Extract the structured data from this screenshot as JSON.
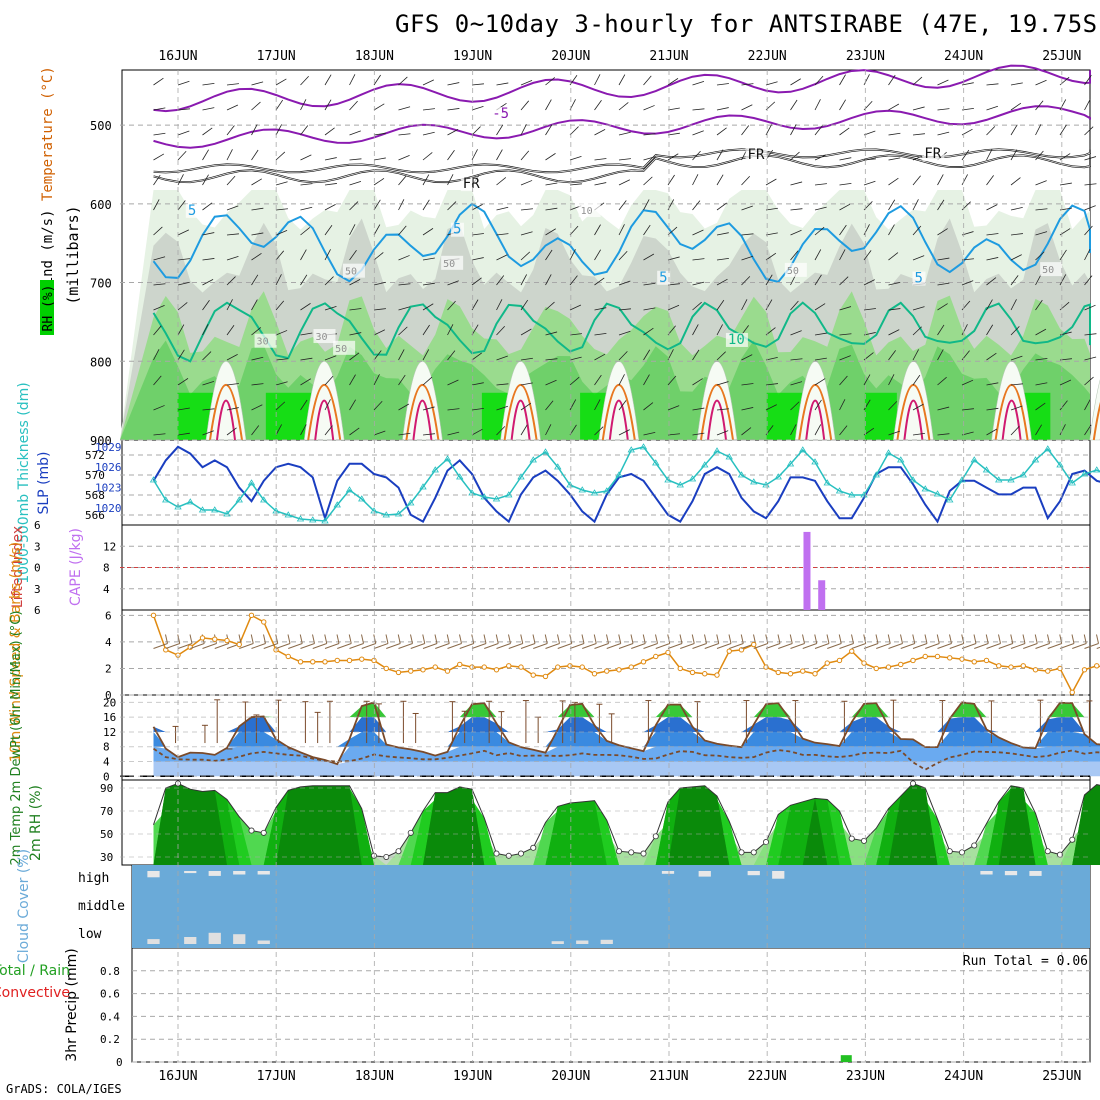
{
  "title": "GFS 0~10day 3-hourly for ANTSIRABE (47E, 19.75S)",
  "footer": "GrADS: COLA/IGES",
  "dates": [
    "16JUN",
    "17JUN",
    "18JUN",
    "19JUN",
    "20JUN",
    "21JUN",
    "22JUN",
    "23JUN",
    "24JUN",
    "25JUN"
  ],
  "colors": {
    "grid": "#a8a8a8",
    "ref_line": "#d04040",
    "cape": "#c070f0",
    "wind_speed": "#e08a10",
    "barb": "#8a6a4a",
    "slp": "#1a3ec0",
    "thickness": "#28c0c0",
    "temp_line": "#7a4a2a",
    "rh_line": "#208020",
    "cloud_blue": "#6aaad8",
    "precip": "#22c022",
    "isotherm_cyan": "#1e9be0",
    "isotherm_teal": "#10b888",
    "isotherm_orange": "#e87820",
    "isotherm_magenta": "#d01a70",
    "isotherm_purple": "#8a1ab0",
    "freezing": "#111111"
  },
  "chart_data": [
    {
      "type": "heatmap",
      "panel": "upper_air",
      "ylabel": "(millibars)",
      "label_rh": "RH (%)",
      "label_temp": "Temperature (°C)",
      "label_wind": "Wind (m/s)",
      "yticks": [
        500,
        600,
        700,
        800,
        900
      ],
      "ylim": [
        900,
        430
      ],
      "contour_labels": [
        {
          "text": "-5",
          "x": 3.2,
          "p": 491,
          "color": "#8a1ab0"
        },
        {
          "text": "FR",
          "x": 5.8,
          "p": 543,
          "color": "#111111"
        },
        {
          "text": "FR",
          "x": 7.6,
          "p": 542,
          "color": "#111111"
        },
        {
          "text": "FR",
          "x": 2.9,
          "p": 580,
          "color": "#111111"
        },
        {
          "text": "5",
          "x": 0.1,
          "p": 614,
          "color": "#1e9be0"
        },
        {
          "text": "5",
          "x": 2.8,
          "p": 638,
          "color": "#1e9be0"
        },
        {
          "text": "5",
          "x": 4.9,
          "p": 699,
          "color": "#1e9be0"
        },
        {
          "text": "5",
          "x": 7.5,
          "p": 700,
          "color": "#1e9be0"
        },
        {
          "text": "10",
          "x": 5.6,
          "p": 778,
          "color": "#10b888"
        },
        {
          "text": "10",
          "x": 4.1,
          "p": 613,
          "color": "#909090"
        },
        {
          "text": "50",
          "x": 1.7,
          "p": 690,
          "color": "#909090"
        },
        {
          "text": "50",
          "x": 2.7,
          "p": 680,
          "color": "#909090"
        },
        {
          "text": "50",
          "x": 6.2,
          "p": 689,
          "color": "#909090"
        },
        {
          "text": "30",
          "x": 0.8,
          "p": 779,
          "color": "#909090"
        },
        {
          "text": "30",
          "x": 1.4,
          "p": 773,
          "color": "#909090"
        },
        {
          "text": "50",
          "x": 1.6,
          "p": 788,
          "color": "#909090"
        },
        {
          "text": "50",
          "x": 8.8,
          "p": 688,
          "color": "#909090"
        }
      ]
    },
    {
      "type": "line",
      "panel": "slp_thickness",
      "ylabel_left": "1000-500mb Thickness (dm)",
      "ylabel_right": "SLP (mb)",
      "ylim_left": [
        565,
        573.5
      ],
      "ylim_right": [
        1017.5,
        1030
      ],
      "yticks_left": [
        566,
        568,
        570,
        572
      ],
      "yticks_right": [
        1020,
        1023,
        1026,
        1029
      ],
      "series": [
        {
          "name": "SLP",
          "axis": "right",
          "values": [
            1024,
            1027,
            1029,
            1028,
            1026,
            1027,
            1026,
            1023,
            1021,
            1024,
            1026,
            1026.5,
            1026,
            1024.5,
            1018.5,
            1024,
            1026.5,
            1026.5,
            1025,
            1024.5,
            1023,
            1019,
            1018,
            1021.5,
            1025.5,
            1027,
            1025,
            1021.5,
            1019.5,
            1018,
            1022,
            1024.5,
            1025.5,
            1024,
            1022,
            1019.5,
            1018,
            1022,
            1024.5,
            1025,
            1024,
            1021.5,
            1019,
            1018,
            1021,
            1025,
            1026,
            1025,
            1021.5,
            1019.5,
            1018.5,
            1021,
            1024.5,
            1024.5,
            1024,
            1021,
            1018.5,
            1018.5,
            1021.5,
            1025,
            1026,
            1026,
            1023.5,
            1020.5,
            1018,
            1022.5,
            1024,
            1024,
            1023,
            1022,
            1022,
            1023,
            1023,
            1018.5,
            1021,
            1025,
            1025.5,
            1024,
            1023.5,
            1023,
            1023
          ]
        },
        {
          "name": "Thickness",
          "axis": "left",
          "values": [
            569.5,
            567.5,
            566.8,
            567.3,
            566.5,
            566.5,
            566.1,
            567.5,
            569.2,
            567.5,
            566.4,
            566,
            565.6,
            565.5,
            565.4,
            567,
            568.5,
            567.6,
            566.4,
            566,
            566.1,
            567.2,
            568.8,
            570.5,
            571.6,
            569.8,
            568.2,
            567.8,
            567.6,
            568,
            569.8,
            571.5,
            572.3,
            570.8,
            569,
            568.5,
            568.2,
            568.4,
            570,
            572.5,
            572.8,
            571.2,
            569.5,
            569,
            569.6,
            571,
            572.4,
            571.8,
            570,
            569.3,
            569,
            569.8,
            571.1,
            572.5,
            571.3,
            569.2,
            568.4,
            568,
            568,
            570,
            572.2,
            571.5,
            569.5,
            568.6,
            568.1,
            567.5,
            569.5,
            571.5,
            570.5,
            569.5,
            569.5,
            570,
            571.5,
            572.6,
            571,
            569.2,
            570.1,
            570.5,
            570,
            569.5,
            570.6
          ]
        }
      ]
    },
    {
      "type": "bar",
      "panel": "lifted_index_cape",
      "ylabel_left": "Lifted Index",
      "ylabel_right": "CAPE (J/kg)",
      "yticks_left": [
        -6,
        -3,
        0,
        3,
        6
      ],
      "ytick_labels_left": [
        "6",
        "3",
        "0",
        "3",
        "6"
      ],
      "yticks_right": [
        4,
        8,
        12
      ],
      "ylim_right": [
        0,
        16
      ],
      "x": [
        6.4,
        6.55
      ],
      "values": [
        14.7,
        5.6
      ]
    },
    {
      "type": "line",
      "panel": "wind_10m",
      "ylabel": "10m Wind Speed & Barbs (m/s)",
      "yticks": [
        0,
        2,
        4,
        6
      ],
      "ylim": [
        0,
        6.4
      ],
      "values": [
        6,
        3.4,
        3.0,
        3.6,
        4.3,
        4.2,
        4.1,
        3.8,
        6.0,
        5.5,
        3.4,
        2.9,
        2.5,
        2.5,
        2.5,
        2.6,
        2.6,
        2.7,
        2.6,
        2.0,
        1.7,
        1.8,
        1.9,
        2.1,
        1.8,
        2.3,
        2.1,
        2.1,
        1.9,
        2.2,
        2.1,
        1.5,
        1.4,
        2.1,
        2.2,
        2.1,
        1.6,
        1.8,
        1.9,
        2.1,
        2.5,
        2.9,
        3.2,
        2.0,
        1.7,
        1.6,
        1.5,
        3.3,
        3.4,
        3.8,
        2.1,
        1.7,
        1.6,
        1.8,
        1.6,
        2.4,
        2.6,
        3.3,
        2.4,
        2.0,
        2.1,
        2.3,
        2.6,
        2.9,
        2.9,
        2.8,
        2.7,
        2.5,
        2.6,
        2.2,
        2.1,
        2.2,
        1.9,
        1.8,
        2.0,
        0.2,
        1.9,
        2.2,
        2.0,
        2.2,
        3.1
      ]
    },
    {
      "type": "line",
      "panel": "temp_dewpoint",
      "ylabel": "2m Temp 2m DewPt (6hr Min/Max) (°C)",
      "yticks": [
        0,
        4,
        8,
        12,
        16,
        20
      ],
      "ylim": [
        -1,
        22
      ],
      "series": [
        {
          "name": "2m Temp",
          "values": [
            13.4,
            7.5,
            5.2,
            6.4,
            6.3,
            5.8,
            7.7,
            13.5,
            16,
            16.2,
            10,
            7.9,
            6.5,
            5.2,
            4.4,
            3.3,
            10.1,
            19,
            20,
            8.6,
            7.8,
            7.3,
            6.6,
            5.6,
            6.6,
            13.5,
            19.5,
            19.8,
            14.3,
            9.2,
            7.9,
            7.2,
            6.4,
            12.7,
            19.3,
            19.6,
            13.8,
            9.6,
            8.4,
            7.6,
            6.8,
            13.8,
            19.4,
            19.4,
            13.4,
            9.7,
            8.8,
            8.3,
            7.9,
            14,
            19.5,
            19.8,
            15.2,
            10.2,
            9.1,
            8.7,
            8.2,
            14.7,
            19.6,
            19.8,
            13.5,
            10.1,
            10,
            7.9,
            7.9,
            15.6,
            20,
            19.6,
            12.7,
            10.5,
            9,
            7.8,
            7.6,
            15.4,
            19.9,
            19.8,
            11.4,
            8.7,
            8.4,
            7.8,
            13.6
          ]
        },
        {
          "name": "2m DewPt",
          "values": [
            7.5,
            5.2,
            4.6,
            4.5,
            4.5,
            4.2,
            4.5,
            5.3,
            6.2,
            6.6,
            6.2,
            5.8,
            5.6,
            4.8,
            4.2,
            4.0,
            4.1,
            4.8,
            5.9,
            5.4,
            5.1,
            4.9,
            4.6,
            4.6,
            5,
            5.6,
            6.2,
            6.9,
            5.7,
            6.3,
            5.5,
            5.6,
            5.6,
            5.5,
            5.7,
            6.2,
            5.8,
            5.8,
            5.7,
            5.3,
            4.7,
            4.8,
            5.9,
            6.8,
            6.6,
            5.7,
            5.6,
            5.2,
            5,
            5.2,
            6.4,
            7.1,
            6.7,
            5.8,
            5.8,
            5.4,
            5.2,
            5.6,
            6.3,
            6.4,
            6.3,
            6.9,
            3.8,
            1.8,
            3.6,
            5.1,
            5.8,
            6.7,
            6.6,
            6.5,
            6.2,
            5.7,
            5.2,
            5.5,
            6.4,
            7,
            6.1,
            6.5,
            6.3,
            6.5,
            6.5
          ]
        }
      ],
      "whiskers": [
        {
          "x": 1.8,
          "max": 13.5
        },
        {
          "x": 4.2,
          "max": 13.8
        },
        {
          "x": 5.2,
          "max": 20.7
        },
        {
          "x": 6.2,
          "max": 7.4
        },
        {
          "x": 7.5,
          "max": 20.1
        },
        {
          "x": 8.4,
          "max": 16.6
        },
        {
          "x": 10.2,
          "max": 20.6
        },
        {
          "x": 11.2,
          "max": 7.4
        },
        {
          "x": 12.4,
          "max": 20.2
        },
        {
          "x": 13.4,
          "max": 17.3
        },
        {
          "x": 14.4,
          "max": 20.3
        },
        {
          "x": 17.4,
          "max": 20.3
        },
        {
          "x": 18.4,
          "max": 19.6
        },
        {
          "x": 20.4,
          "max": 20.3
        },
        {
          "x": 21.4,
          "max": 17.0
        },
        {
          "x": 24.4,
          "max": 20.2
        },
        {
          "x": 25.4,
          "max": 17.6
        },
        {
          "x": 27.4,
          "max": 20.3
        },
        {
          "x": 28.4,
          "max": 17.5
        },
        {
          "x": 30.4,
          "max": 20.5
        },
        {
          "x": 31.4,
          "max": 16.0
        },
        {
          "x": 33.4,
          "max": 20.4
        },
        {
          "x": 34.4,
          "max": 20.0
        },
        {
          "x": 36.4,
          "max": 19.5
        },
        {
          "x": 37.4,
          "max": 16.9
        },
        {
          "x": 40.4,
          "max": 20.5
        },
        {
          "x": 44.4,
          "max": 20.2
        },
        {
          "x": 48.4,
          "max": 20.5
        },
        {
          "x": 52.4,
          "max": 20.5
        },
        {
          "x": 56.4,
          "max": 20.3
        },
        {
          "x": 60.4,
          "max": 20.6
        },
        {
          "x": 64.4,
          "max": 20.5
        },
        {
          "x": 68.4,
          "max": 20.4
        },
        {
          "x": 72.4,
          "max": 20.6
        },
        {
          "x": 76.4,
          "max": 20.4
        }
      ]
    },
    {
      "type": "area",
      "panel": "rh_2m",
      "ylabel": "2m RH (%)",
      "yticks": [
        30,
        50,
        70,
        90
      ],
      "ylim": [
        23,
        97
      ],
      "values": [
        58,
        90,
        94,
        89,
        87,
        88,
        80,
        65,
        53,
        51,
        73,
        88,
        91,
        92,
        92,
        92,
        92,
        72,
        31,
        30,
        35,
        51,
        70,
        86,
        86,
        91,
        89,
        64,
        33,
        31,
        33,
        38,
        60,
        74,
        77,
        78,
        79,
        62,
        35,
        34,
        33,
        48,
        78,
        90,
        91,
        92,
        83,
        61,
        34,
        34,
        43,
        67,
        75,
        78,
        81,
        80,
        70,
        46,
        44,
        55,
        72,
        83,
        94,
        90,
        63,
        35,
        34,
        40,
        59,
        78,
        92,
        90,
        68,
        35,
        32,
        45,
        84,
        93,
        91,
        92,
        92
      ]
    },
    {
      "type": "heatmap",
      "panel": "cloud_cover",
      "ylabel": "Cloud Cover (%)",
      "rows": [
        "high",
        "middle",
        "low"
      ],
      "high": [
        45,
        0,
        0,
        15,
        0,
        35,
        0,
        25,
        0,
        25,
        0,
        0,
        0,
        0,
        0,
        0,
        0,
        0,
        0,
        0,
        0,
        0,
        0,
        0,
        0,
        0,
        0,
        0,
        0,
        0,
        0,
        0,
        0,
        0,
        0,
        0,
        0,
        0,
        0,
        0,
        0,
        0,
        20,
        0,
        0,
        40,
        0,
        0,
        0,
        30,
        0,
        55,
        0,
        0,
        0,
        0,
        0,
        0,
        0,
        0,
        0,
        0,
        0,
        0,
        0,
        0,
        0,
        0,
        25,
        0,
        30,
        0,
        35,
        0,
        0,
        0,
        0,
        0,
        0,
        0,
        0,
        0
      ],
      "low": [
        35,
        0,
        0,
        50,
        0,
        80,
        0,
        70,
        0,
        25,
        0,
        0,
        0,
        0,
        0,
        0,
        0,
        0,
        0,
        0,
        0,
        0,
        0,
        0,
        0,
        0,
        0,
        0,
        0,
        0,
        0,
        0,
        0,
        20,
        0,
        25,
        0,
        30,
        0,
        0,
        0,
        0,
        0,
        0,
        0,
        0,
        0,
        0,
        0,
        0,
        0,
        0,
        0,
        0,
        0,
        0,
        0,
        0,
        0,
        0,
        0,
        0,
        0,
        0,
        0,
        0,
        0,
        0,
        0,
        0,
        0,
        0,
        0,
        0,
        0,
        0,
        0,
        0,
        0,
        0,
        0
      ]
    },
    {
      "type": "bar",
      "panel": "precip",
      "ylabel": "3hr Precip (mm)",
      "ylabel_total": "Total / Rain",
      "ylabel_conv": "Convective",
      "yticks": [
        0,
        0.2,
        0.4,
        0.6,
        0.8
      ],
      "ylim": [
        0,
        1.0
      ],
      "run_total": "Run Total = 0.06",
      "x": [
        6.8
      ],
      "values": [
        0.06
      ]
    }
  ]
}
